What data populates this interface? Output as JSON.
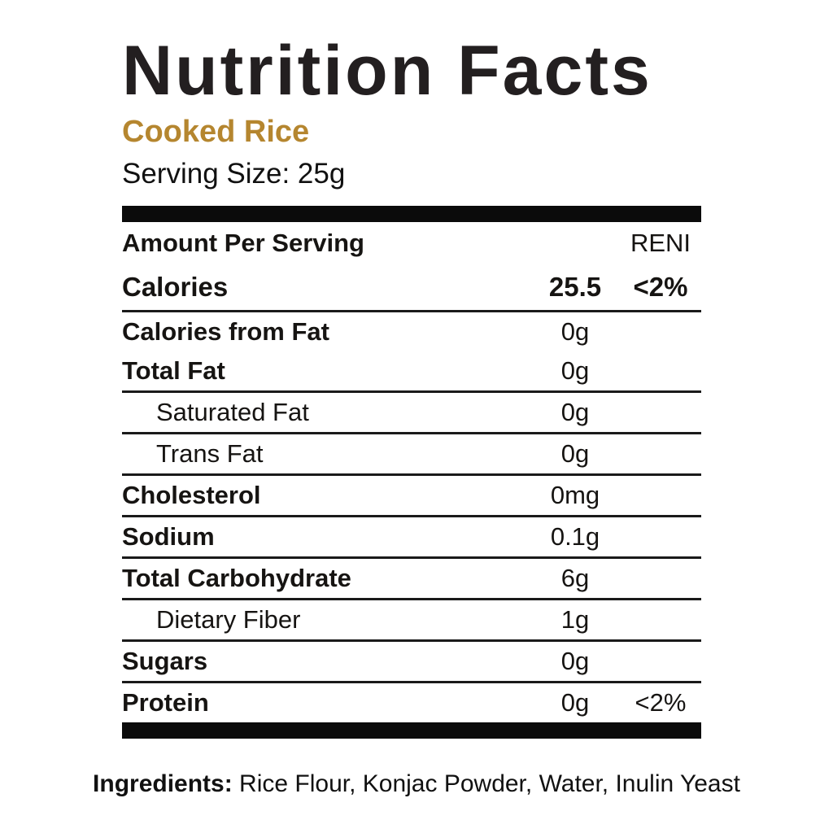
{
  "title": "Nutrition Facts",
  "product_name": "Cooked Rice",
  "serving_size": "Serving Size: 25g",
  "table": {
    "header": {
      "left": "Amount Per Serving",
      "right": "RENI"
    },
    "calories_row": {
      "label": "Calories",
      "amount": "25.5",
      "reni": "<2%"
    },
    "rows": [
      {
        "label": "Calories from Fat",
        "amount": "0g",
        "reni": ""
      },
      {
        "label": "Total Fat",
        "amount": "0g",
        "reni": ""
      },
      {
        "label": "Saturated Fat",
        "amount": "0g",
        "reni": ""
      },
      {
        "label": "Trans Fat",
        "amount": "0g",
        "reni": ""
      },
      {
        "label": "Cholesterol",
        "amount": "0mg",
        "reni": ""
      },
      {
        "label": "Sodium",
        "amount": "0.1g",
        "reni": ""
      },
      {
        "label": "Total Carbohydrate",
        "amount": "6g",
        "reni": ""
      },
      {
        "label": "Dietary Fiber",
        "amount": "1g",
        "reni": ""
      },
      {
        "label": "Sugars",
        "amount": "0g",
        "reni": ""
      },
      {
        "label": "Protein",
        "amount": "0g",
        "reni": "<2%"
      }
    ]
  },
  "ingredients": {
    "label": "Ingredients:",
    "text": " Rice Flour, Konjac Powder, Water, Inulin Yeast"
  },
  "colors": {
    "accent_gold": "#b5862f",
    "title_black": "#231f20",
    "bar_black": "#0b0b0b",
    "rule_black": "#1a1a1a",
    "background": "#ffffff"
  }
}
